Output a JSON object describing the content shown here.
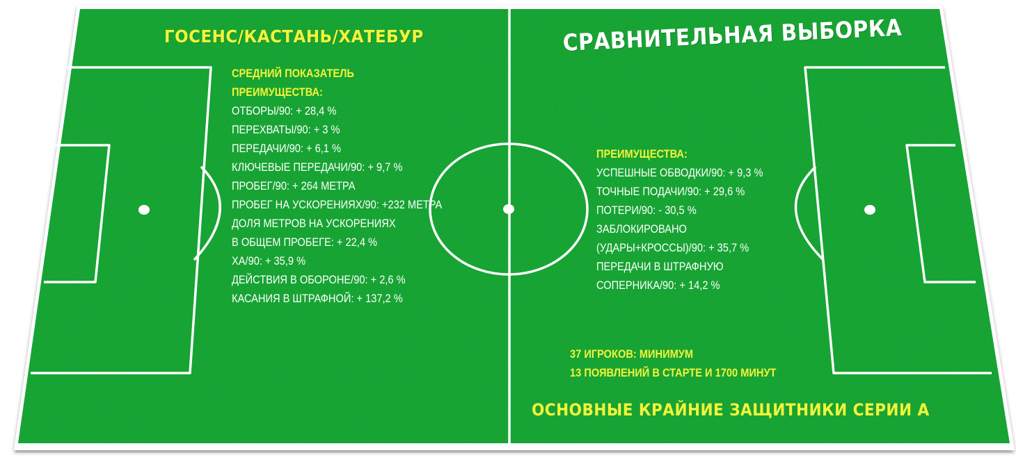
{
  "left_panel": {
    "title": "ГОСЕНС/КАСТАНЬ/ХАТЕБУР",
    "subheading_1": "СРЕДНИЙ ПОКАЗАТЕЛЬ",
    "subheading_2": "ПРЕИМУЩЕСТВА:",
    "stats": [
      "ОТБОРЫ/90: + 28,4 %",
      "ПЕРЕХВАТЫ/90: + 3 %",
      "ПЕРЕДАЧИ/90: + 6,1 %",
      "КЛЮЧЕВЫЕ ПЕРЕДАЧИ/90: + 9,7 %",
      "ПРОБЕГ/90: + 264 МЕТРА",
      "ПРОБЕГ НА УСКОРЕНИЯХ/90: +232 МЕТРА",
      "ДОЛЯ МЕТРОВ НА УСКОРЕНИЯХ",
      "В ОБЩЕМ ПРОБЕГЕ: + 22,4 %",
      "ХА/90: + 35,9 %",
      "ДЕЙСТВИЯ В ОБОРОНЕ/90: + 2,6 %",
      "КАСАНИЯ В ШТРАФНОЙ: + 137,2 %"
    ]
  },
  "right_panel": {
    "title": "СРАВНИТЕЛЬНАЯ ВЫБОРКА",
    "subheading": "ПРЕИМУЩЕСТВА:",
    "stats": [
      "УСПЕШНЫЕ ОБВОДКИ/90: + 9,3 %",
      "ТОЧНЫЕ ПОДАЧИ/90: + 29,6 %",
      "ПОТЕРИ/90: - 30,5 %",
      "ЗАБЛОКИРОВАНО",
      "(УДАРЫ+КРОССЫ)/90: + 35,7 %",
      "ПЕРЕДАЧИ В ШТРАФНУЮ",
      "СОПЕРНИКА/90: + 14,2 %"
    ],
    "sample_lines": [
      "37 ИГРОКОВ: МИНИМУМ",
      "13 ПОЯВЛЕНИЙ В СТАРТЕ И 1700 МИНУТ"
    ],
    "bottom_title": "ОСНОВНЫЕ КРАЙНИЕ ЗАЩИТНИКИ СЕРИИ А"
  },
  "colors": {
    "pitch_green": "#1ab83a",
    "line_white": "#ffffff",
    "accent_yellow": "#f3f33a"
  }
}
